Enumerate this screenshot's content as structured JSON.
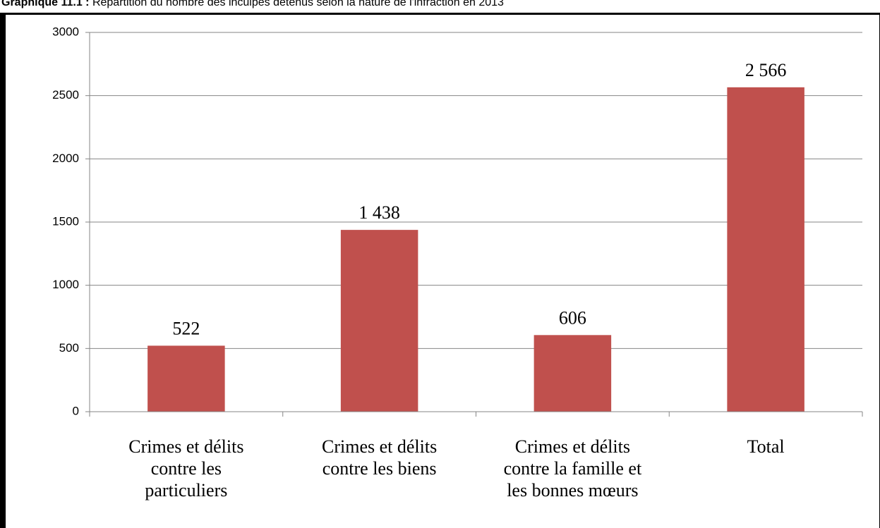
{
  "chart_data": {
    "type": "bar",
    "title_prefix": "Graphique 11.1 :",
    "title": "Répartition du nombre des inculpés détenus selon la nature de l'infraction en 2013",
    "categories": [
      "Crimes et délits\ncontre les\nparticuliers",
      "Crimes et délits\ncontre les biens",
      "Crimes et délits\ncontre la famille et\nles bonnes mœurs",
      "Total"
    ],
    "values": [
      522,
      1438,
      606,
      2566
    ],
    "value_labels": [
      "522",
      "1 438",
      "606",
      "2 566"
    ],
    "color": "#c0504d",
    "ylim": [
      0,
      3000
    ],
    "yticks": [
      0,
      500,
      1000,
      1500,
      2000,
      2500,
      3000
    ],
    "grid": true
  }
}
